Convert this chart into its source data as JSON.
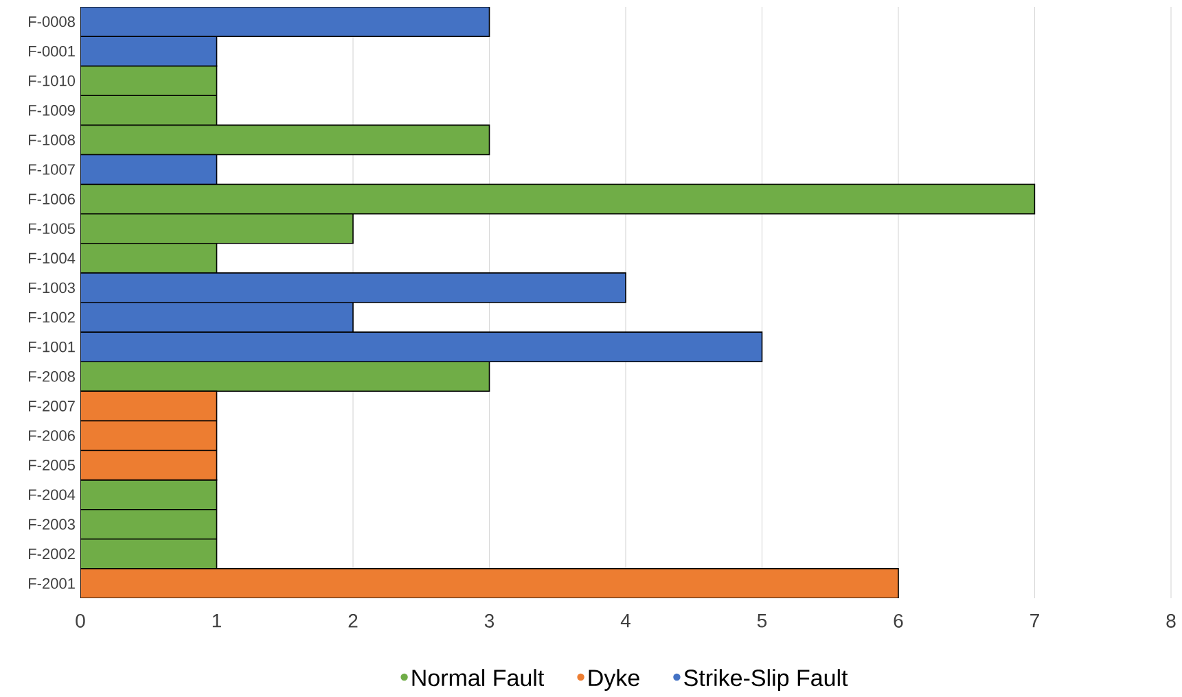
{
  "chart_data": {
    "type": "bar",
    "orientation": "horizontal",
    "stacked": true,
    "categories": [
      "F-0008",
      "F-0001",
      "F-1010",
      "F-1009",
      "F-1008",
      "F-1007",
      "F-1006",
      "F-1005",
      "F-1004",
      "F-1003",
      "F-1002",
      "F-1001",
      "F-2008",
      "F-2007",
      "F-2006",
      "F-2005",
      "F-2004",
      "F-2003",
      "F-2002",
      "F-2001"
    ],
    "series": [
      {
        "name": "Normal Fault",
        "color": "#70ad47",
        "values": [
          null,
          null,
          1,
          1,
          3,
          null,
          7,
          2,
          1,
          null,
          null,
          null,
          3,
          null,
          null,
          null,
          1,
          1,
          1,
          null
        ]
      },
      {
        "name": "Dyke",
        "color": "#ed7d31",
        "values": [
          null,
          null,
          null,
          null,
          null,
          null,
          null,
          null,
          null,
          null,
          null,
          null,
          null,
          1,
          1,
          1,
          null,
          null,
          null,
          6
        ]
      },
      {
        "name": "Strike-Slip Fault",
        "color": "#4472c4",
        "values": [
          3,
          1,
          null,
          null,
          null,
          1,
          null,
          null,
          null,
          4,
          2,
          5,
          null,
          null,
          null,
          null,
          null,
          null,
          null,
          null
        ]
      }
    ],
    "xlim": [
      0,
      8
    ],
    "xticks": [
      0,
      1,
      2,
      3,
      4,
      5,
      6,
      7,
      8
    ],
    "grid": "x",
    "legend": "bottom"
  }
}
